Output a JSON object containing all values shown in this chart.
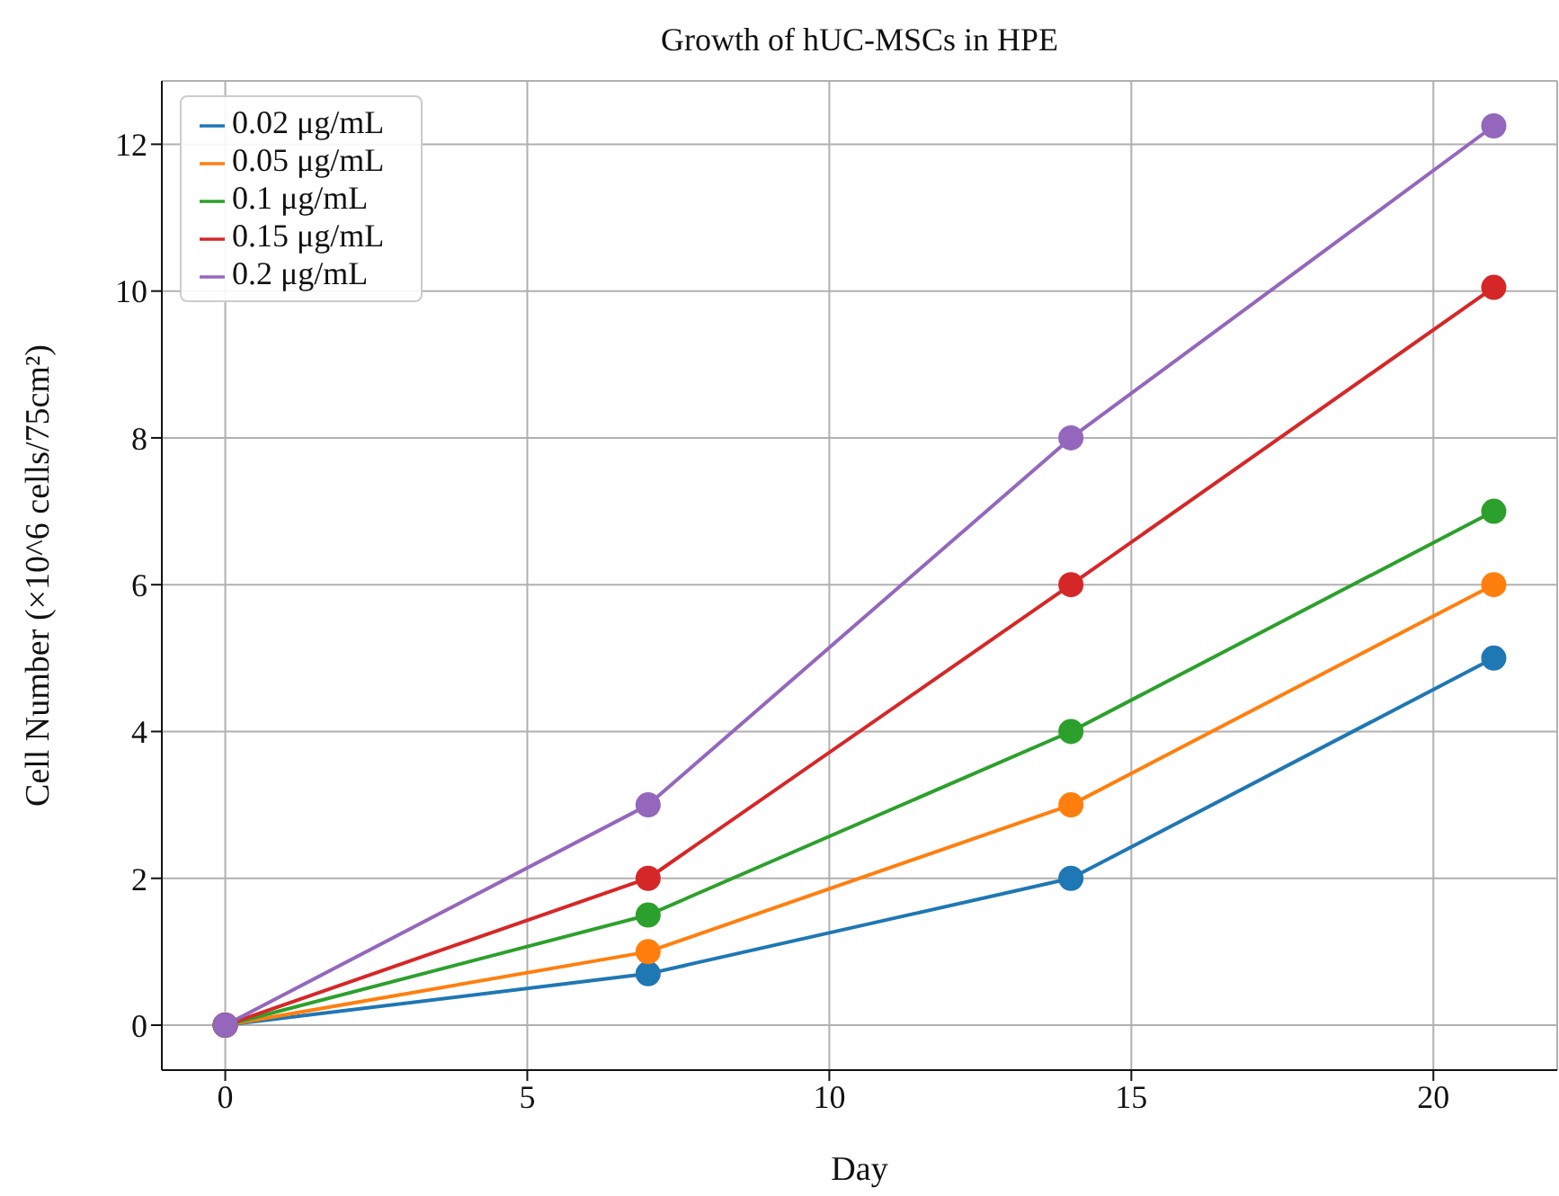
{
  "chart_data": {
    "type": "line",
    "title": "Growth of hUC-MSCs in HPE",
    "xlabel": "Day",
    "ylabel": "Cell Number (×10^6 cells/75cm²)",
    "x": [
      0,
      7,
      14,
      21
    ],
    "series": [
      {
        "name": "0.02 μg/mL",
        "color": "#1f77b4",
        "values": [
          0,
          0.7,
          2,
          5
        ]
      },
      {
        "name": "0.05 μg/mL",
        "color": "#ff7f0e",
        "values": [
          0,
          1,
          3,
          6
        ]
      },
      {
        "name": "0.1 μg/mL",
        "color": "#2ca02c",
        "values": [
          0,
          1.5,
          4,
          7
        ]
      },
      {
        "name": "0.15 μg/mL",
        "color": "#d62728",
        "values": [
          0,
          2,
          6,
          10.05
        ]
      },
      {
        "name": "0.2 μg/mL",
        "color": "#9467bd",
        "values": [
          0,
          3,
          8,
          12.25
        ]
      }
    ],
    "xlim": [
      -1.05,
      22.05
    ],
    "xticks": [
      0,
      5,
      10,
      15,
      20
    ],
    "ylim": [
      -0.6125,
      12.8625
    ],
    "yticks": [
      0,
      2,
      4,
      6,
      8,
      10,
      12
    ],
    "grid": true,
    "legend": "top left",
    "marker": "circle",
    "line_style": "solid"
  }
}
